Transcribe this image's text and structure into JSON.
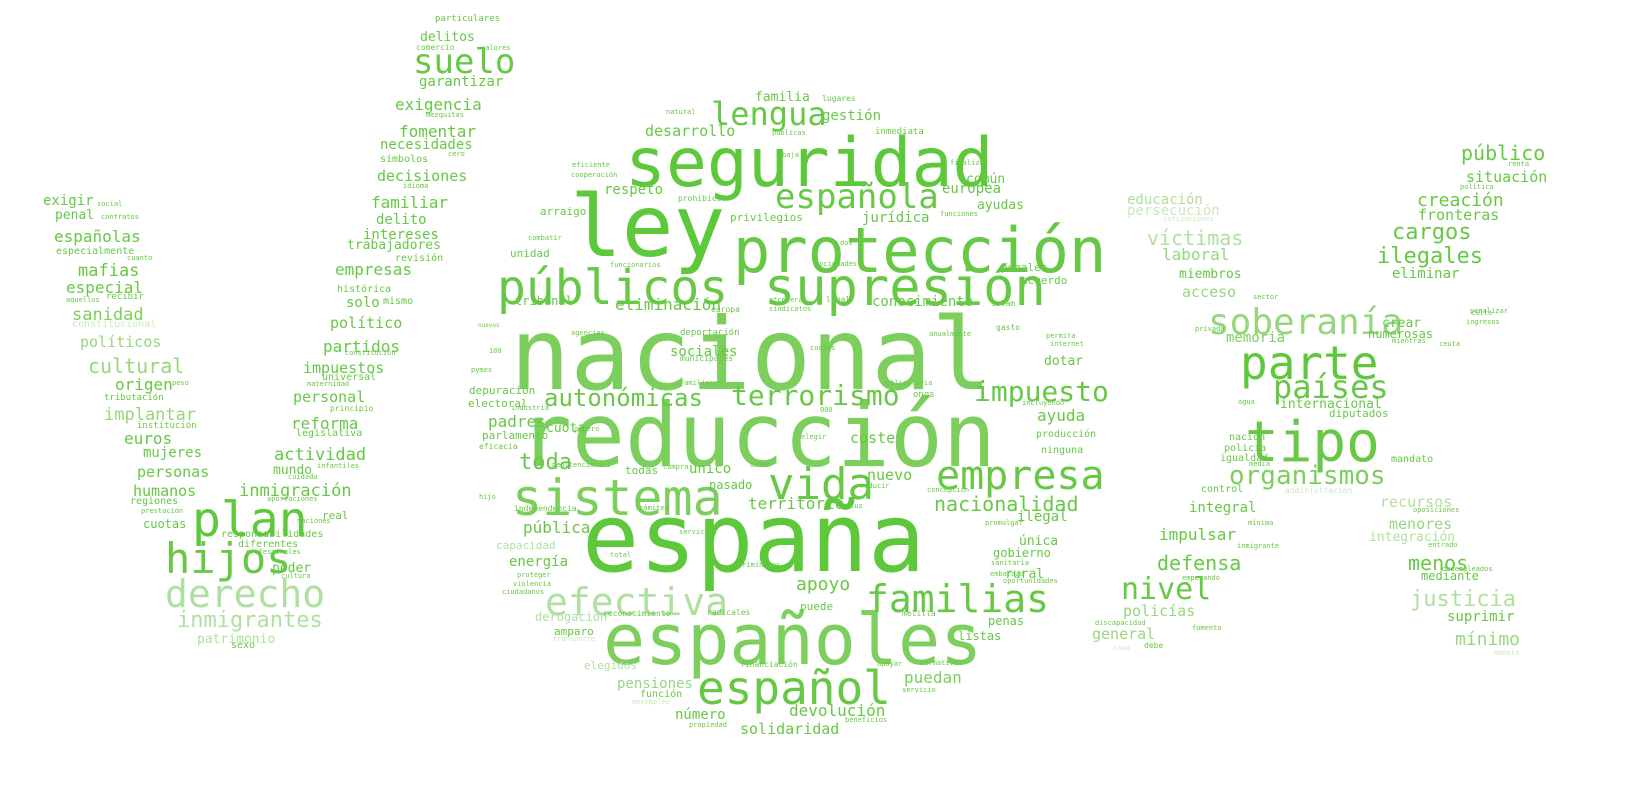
{
  "palette": [
    "#5cc83a",
    "#66c844",
    "#7ccf5c",
    "#96d77e",
    "#b0e0a0",
    "#c8eabb"
  ],
  "words": [
    {
      "text": "nacional",
      "w": 100,
      "c": 2
    },
    {
      "text": "españa",
      "w": 95,
      "c": 0
    },
    {
      "text": "reducción",
      "w": 88,
      "c": 2
    },
    {
      "text": "ley",
      "w": 86,
      "c": 0
    },
    {
      "text": "españoles",
      "w": 70,
      "c": 2
    },
    {
      "text": "seguridad",
      "w": 68,
      "c": 0
    },
    {
      "text": "protección",
      "w": 62,
      "c": 1
    },
    {
      "text": "tipo",
      "w": 56,
      "c": 1
    },
    {
      "text": "supresión",
      "w": 52,
      "c": 1
    },
    {
      "text": "sistema",
      "w": 50,
      "c": 2
    },
    {
      "text": "plan",
      "w": 48,
      "c": 0
    },
    {
      "text": "público",
      "w": 20,
      "c": 1
    },
    {
      "text": "públicos",
      "w": 48,
      "c": 1
    },
    {
      "text": "parte",
      "w": 46,
      "c": 0
    },
    {
      "text": "español",
      "w": 46,
      "c": 1
    },
    {
      "text": "vida",
      "w": 44,
      "c": 1
    },
    {
      "text": "hijos",
      "w": 42,
      "c": 1
    },
    {
      "text": "empresa",
      "w": 40,
      "c": 1
    },
    {
      "text": "efectiva",
      "w": 38,
      "c": 4
    },
    {
      "text": "familias",
      "w": 38,
      "c": 1
    },
    {
      "text": "derecho",
      "w": 38,
      "c": 4
    },
    {
      "text": "soberanía",
      "w": 36,
      "c": 3
    },
    {
      "text": "española",
      "w": 34,
      "c": 1
    },
    {
      "text": "suelo",
      "w": 34,
      "c": 1
    },
    {
      "text": "lengua",
      "w": 32,
      "c": 1
    },
    {
      "text": "países",
      "w": 32,
      "c": 1
    },
    {
      "text": "nivel",
      "w": 30,
      "c": 1
    },
    {
      "text": "terrorismo",
      "w": 28,
      "c": 1
    },
    {
      "text": "impuesto",
      "w": 28,
      "c": 1
    },
    {
      "text": "organismos",
      "w": 26,
      "c": 2
    },
    {
      "text": "autonómicas",
      "w": 24,
      "c": 1
    },
    {
      "text": "toda",
      "w": 22,
      "c": 1
    },
    {
      "text": "ilegales",
      "w": 22,
      "c": 1
    },
    {
      "text": "cargos",
      "w": 22,
      "c": 1
    },
    {
      "text": "inmigrantes",
      "w": 22,
      "c": 4
    },
    {
      "text": "nacionalidad",
      "w": 20,
      "c": 1
    },
    {
      "text": "defensa",
      "w": 20,
      "c": 1
    },
    {
      "text": "justicia",
      "w": 22,
      "c": 4
    },
    {
      "text": "víctimas",
      "w": 20,
      "c": 4
    },
    {
      "text": "menos",
      "w": 20,
      "c": 1
    },
    {
      "text": "cultural",
      "w": 20,
      "c": 3
    },
    {
      "text": "apoyo",
      "w": 18,
      "c": 1
    },
    {
      "text": "puedan",
      "w": 16,
      "c": 2
    },
    {
      "text": "devolución",
      "w": 16,
      "c": 1
    },
    {
      "text": "mínimo",
      "w": 18,
      "c": 3
    },
    {
      "text": "creación",
      "w": 18,
      "c": 1
    },
    {
      "text": "situación",
      "w": 15,
      "c": 1
    },
    {
      "text": "fronteras",
      "w": 15,
      "c": 1
    },
    {
      "text": "mafias",
      "w": 17,
      "c": 1
    },
    {
      "text": "españolas",
      "w": 16,
      "c": 1
    },
    {
      "text": "exigir",
      "w": 14,
      "c": 1
    },
    {
      "text": "penal",
      "w": 13,
      "c": 1
    },
    {
      "text": "especial",
      "w": 16,
      "c": 1
    },
    {
      "text": "sanidad",
      "w": 17,
      "c": 2
    },
    {
      "text": "políticos",
      "w": 15,
      "c": 3
    },
    {
      "text": "origen",
      "w": 16,
      "c": 1
    },
    {
      "text": "implantar",
      "w": 17,
      "c": 3
    },
    {
      "text": "euros",
      "w": 16,
      "c": 1
    },
    {
      "text": "mujeres",
      "w": 14,
      "c": 1
    },
    {
      "text": "personas",
      "w": 15,
      "c": 1
    },
    {
      "text": "humanos",
      "w": 15,
      "c": 1
    },
    {
      "text": "cuotas",
      "w": 12,
      "c": 1
    },
    {
      "text": "patrimonio",
      "w": 13,
      "c": 4
    },
    {
      "text": "inmigración",
      "w": 17,
      "c": 1
    },
    {
      "text": "actividad",
      "w": 17,
      "c": 1
    },
    {
      "text": "mundo",
      "w": 13,
      "c": 1
    },
    {
      "text": "poder",
      "w": 13,
      "c": 1
    },
    {
      "text": "reforma",
      "w": 16,
      "c": 1
    },
    {
      "text": "personal",
      "w": 15,
      "c": 1
    },
    {
      "text": "impuestos",
      "w": 15,
      "c": 1
    },
    {
      "text": "partidos",
      "w": 16,
      "c": 1
    },
    {
      "text": "político",
      "w": 15,
      "c": 1
    },
    {
      "text": "solo",
      "w": 14,
      "c": 1
    },
    {
      "text": "empresas",
      "w": 16,
      "c": 1
    },
    {
      "text": "delito",
      "w": 14,
      "c": 1
    },
    {
      "text": "intereses",
      "w": 14,
      "c": 1
    },
    {
      "text": "trabajadores",
      "w": 13,
      "c": 1
    },
    {
      "text": "familiar",
      "w": 16,
      "c": 1
    },
    {
      "text": "decisiones",
      "w": 15,
      "c": 1
    },
    {
      "text": "necesidades",
      "w": 14,
      "c": 1
    },
    {
      "text": "fomentar",
      "w": 16,
      "c": 1
    },
    {
      "text": "exigencia",
      "w": 16,
      "c": 1
    },
    {
      "text": "garantizar",
      "w": 14,
      "c": 1
    },
    {
      "text": "delitos",
      "w": 13,
      "c": 1
    },
    {
      "text": "desarrollo",
      "w": 15,
      "c": 1
    },
    {
      "text": "respeto",
      "w": 14,
      "c": 1
    },
    {
      "text": "familia",
      "w": 13,
      "c": 1
    },
    {
      "text": "gestión",
      "w": 14,
      "c": 1
    },
    {
      "text": "común",
      "w": 13,
      "c": 1
    },
    {
      "text": "europea",
      "w": 14,
      "c": 1
    },
    {
      "text": "ayudas",
      "w": 13,
      "c": 1
    },
    {
      "text": "jurídica",
      "w": 14,
      "c": 1
    },
    {
      "text": "conocimiento",
      "w": 14,
      "c": 1
    },
    {
      "text": "eliminación",
      "w": 16,
      "c": 1
    },
    {
      "text": "ayuda",
      "w": 16,
      "c": 1
    },
    {
      "text": "coste",
      "w": 15,
      "c": 1
    },
    {
      "text": "nuevo",
      "w": 15,
      "c": 1
    },
    {
      "text": "padres",
      "w": 16,
      "c": 1
    },
    {
      "text": "territorio",
      "w": 16,
      "c": 1
    },
    {
      "text": "pública",
      "w": 16,
      "c": 1
    },
    {
      "text": "energía",
      "w": 14,
      "c": 1
    },
    {
      "text": "cuota",
      "w": 13,
      "c": 1
    },
    {
      "text": "sociales",
      "w": 14,
      "c": 1
    },
    {
      "text": "único",
      "w": 14,
      "c": 1
    },
    {
      "text": "ilegal",
      "w": 14,
      "c": 1
    },
    {
      "text": "número",
      "w": 14,
      "c": 1
    },
    {
      "text": "solidaridad",
      "w": 15,
      "c": 1
    },
    {
      "text": "pensiones",
      "w": 14,
      "c": 3
    },
    {
      "text": "educación",
      "w": 14,
      "c": 4
    },
    {
      "text": "persecución",
      "w": 14,
      "c": 5
    },
    {
      "text": "laboral",
      "w": 16,
      "c": 3
    },
    {
      "text": "acceso",
      "w": 15,
      "c": 3
    },
    {
      "text": "memoria",
      "w": 14,
      "c": 2
    },
    {
      "text": "eliminar",
      "w": 14,
      "c": 1
    },
    {
      "text": "crear",
      "w": 13,
      "c": 1
    },
    {
      "text": "integral",
      "w": 14,
      "c": 1
    },
    {
      "text": "impulsar",
      "w": 16,
      "c": 1
    },
    {
      "text": "recursos",
      "w": 15,
      "c": 4
    },
    {
      "text": "menores",
      "w": 15,
      "c": 3
    },
    {
      "text": "integración",
      "w": 13,
      "c": 4
    },
    {
      "text": "policías",
      "w": 15,
      "c": 3
    },
    {
      "text": "general",
      "w": 15,
      "c": 3
    },
    {
      "text": "internacional",
      "w": 13,
      "c": 1
    },
    {
      "text": "diputados",
      "w": 11,
      "c": 1
    },
    {
      "text": "numerosas",
      "w": 12,
      "c": 1
    },
    {
      "text": "suprimir",
      "w": 14,
      "c": 1
    },
    {
      "text": "mediante",
      "w": 12,
      "c": 1
    },
    {
      "text": "rural",
      "w": 13,
      "c": 1
    },
    {
      "text": "gobierno",
      "w": 12,
      "c": 1
    },
    {
      "text": "única",
      "w": 13,
      "c": 1
    },
    {
      "text": "dotar",
      "w": 13,
      "c": 1
    },
    {
      "text": "listas",
      "w": 12,
      "c": 1
    },
    {
      "text": "penas",
      "w": 12,
      "c": 1
    },
    {
      "text": "puede",
      "w": 11,
      "c": 1
    },
    {
      "text": "amparo",
      "w": 11,
      "c": 1
    },
    {
      "text": "elegidos",
      "w": 11,
      "c": 4
    },
    {
      "text": "capacidad",
      "w": 11,
      "c": 4
    },
    {
      "text": "derogación",
      "w": 12,
      "c": 4
    },
    {
      "text": "pasado",
      "w": 12,
      "c": 1
    },
    {
      "text": "todas",
      "w": 11,
      "c": 1
    },
    {
      "text": "tribunal",
      "w": 12,
      "c": 1
    },
    {
      "text": "arraigo",
      "w": 11,
      "c": 1
    },
    {
      "text": "unidad",
      "w": 11,
      "c": 1
    },
    {
      "text": "depuración",
      "w": 11,
      "c": 1
    },
    {
      "text": "electoral",
      "w": 11,
      "c": 1
    },
    {
      "text": "parlamento",
      "w": 11,
      "c": 1
    },
    {
      "text": "privilegios",
      "w": 11,
      "c": 1
    },
    {
      "text": "acuerdo",
      "w": 11,
      "c": 1
    },
    {
      "text": "penales",
      "w": 11,
      "c": 1
    },
    {
      "text": "producción",
      "w": 10,
      "c": 1
    },
    {
      "text": "ninguna",
      "w": 10,
      "c": 1
    },
    {
      "text": "miembros",
      "w": 13,
      "c": 1
    },
    {
      "text": "real",
      "w": 11,
      "c": 1
    },
    {
      "text": "legislativa",
      "w": 10,
      "c": 1
    },
    {
      "text": "histórica",
      "w": 10,
      "c": 1
    },
    {
      "text": "universal",
      "w": 10,
      "c": 1
    },
    {
      "text": "mismo",
      "w": 10,
      "c": 1
    },
    {
      "text": "símbolos",
      "w": 10,
      "c": 1
    },
    {
      "text": "revisión",
      "w": 10,
      "c": 1
    },
    {
      "text": "institución",
      "w": 9,
      "c": 1
    },
    {
      "text": "responsabilidades",
      "w": 10,
      "c": 1
    },
    {
      "text": "diferentes",
      "w": 10,
      "c": 1
    },
    {
      "text": "regiones",
      "w": 10,
      "c": 1
    },
    {
      "text": "tributación",
      "w": 9,
      "c": 1
    },
    {
      "text": "especialmente",
      "w": 10,
      "c": 1
    },
    {
      "text": "constitucional",
      "w": 10,
      "c": 5
    },
    {
      "text": "recibir",
      "w": 9,
      "c": 1
    },
    {
      "text": "mandato",
      "w": 10,
      "c": 1
    },
    {
      "text": "nación",
      "w": 10,
      "c": 1
    },
    {
      "text": "policía",
      "w": 10,
      "c": 1
    },
    {
      "text": "igualdad",
      "w": 10,
      "c": 1
    },
    {
      "text": "control",
      "w": 10,
      "c": 1
    },
    {
      "text": "sexo",
      "w": 10,
      "c": 1
    },
    {
      "text": "función",
      "w": 10,
      "c": 1
    },
    {
      "text": "particulares",
      "w": 9,
      "c": 1
    },
    {
      "text": "comercio",
      "w": 8,
      "c": 1
    },
    {
      "text": "valores",
      "w": 7,
      "c": 1
    },
    {
      "text": "mezquitas",
      "w": 7,
      "c": 1
    },
    {
      "text": "idioma",
      "w": 7,
      "c": 1
    },
    {
      "text": "cero",
      "w": 7,
      "c": 1
    },
    {
      "text": "social",
      "w": 7,
      "c": 1
    },
    {
      "text": "contratos",
      "w": 7,
      "c": 1
    },
    {
      "text": "cuanto",
      "w": 7,
      "c": 1
    },
    {
      "text": "aquellos",
      "w": 7,
      "c": 1
    },
    {
      "text": "peso",
      "w": 7,
      "c": 1
    },
    {
      "text": "constitución",
      "w": 7,
      "c": 1
    },
    {
      "text": "maternidad",
      "w": 7,
      "c": 1
    },
    {
      "text": "principio",
      "w": 8,
      "c": 1
    },
    {
      "text": "infantiles",
      "w": 7,
      "c": 1
    },
    {
      "text": "cuidado",
      "w": 7,
      "c": 1
    },
    {
      "text": "aportaciones",
      "w": 7,
      "c": 1
    },
    {
      "text": "prestación",
      "w": 7,
      "c": 1
    },
    {
      "text": "naciones",
      "w": 7,
      "c": 1
    },
    {
      "text": "profesionales",
      "w": 7,
      "c": 1
    },
    {
      "text": "cultura",
      "w": 7,
      "c": 1
    },
    {
      "text": "lugares",
      "w": 8,
      "c": 1
    },
    {
      "text": "natural",
      "w": 7,
      "c": 1
    },
    {
      "text": "públicas",
      "w": 7,
      "c": 1
    },
    {
      "text": "baja",
      "w": 7,
      "c": 1
    },
    {
      "text": "inmediata",
      "w": 9,
      "c": 1
    },
    {
      "text": "eficiente",
      "w": 7,
      "c": 1
    },
    {
      "text": "cooperación",
      "w": 7,
      "c": 1
    },
    {
      "text": "finalizar",
      "w": 7,
      "c": 1
    },
    {
      "text": "prohibición",
      "w": 8,
      "c": 1
    },
    {
      "text": "combatir",
      "w": 7,
      "c": 1
    },
    {
      "text": "funciones",
      "w": 7,
      "c": 1
    },
    {
      "text": "dos",
      "w": 7,
      "c": 1
    },
    {
      "text": "funcionarios",
      "w": 7,
      "c": 1
    },
    {
      "text": "sociedades",
      "w": 7,
      "c": 1
    },
    {
      "text": "europa",
      "w": 8,
      "c": 1
    },
    {
      "text": "etcétera",
      "w": 7,
      "c": 1
    },
    {
      "text": "sindicatos",
      "w": 7,
      "c": 1
    },
    {
      "text": "legal",
      "w": 8,
      "c": 1
    },
    {
      "text": "islam",
      "w": 8,
      "c": 1
    },
    {
      "text": "gasto",
      "w": 8,
      "c": 1
    },
    {
      "text": "permita",
      "w": 7,
      "c": 1
    },
    {
      "text": "internet",
      "w": 7,
      "c": 1
    },
    {
      "text": "nuevos",
      "w": 6,
      "c": 1
    },
    {
      "text": "agencias",
      "w": 7,
      "c": 1
    },
    {
      "text": "100",
      "w": 7,
      "c": 1
    },
    {
      "text": "deportación",
      "w": 9,
      "c": 1
    },
    {
      "text": "municipales",
      "w": 8,
      "c": 1
    },
    {
      "text": "costes",
      "w": 7,
      "c": 1
    },
    {
      "text": "anualmente",
      "w": 7,
      "c": 1
    },
    {
      "text": "familiares",
      "w": 7,
      "c": 1
    },
    {
      "text": "obligatoria",
      "w": 7,
      "c": 1
    },
    {
      "text": "ongs",
      "w": 9,
      "c": 1
    },
    {
      "text": "pymes",
      "w": 7,
      "c": 1
    },
    {
      "text": "industria",
      "w": 7,
      "c": 1
    },
    {
      "text": "000",
      "w": 7,
      "c": 1
    },
    {
      "text": "incluyendo",
      "w": 7,
      "c": 1
    },
    {
      "text": "género",
      "w": 7,
      "c": 1
    },
    {
      "text": "elegir",
      "w": 7,
      "c": 1
    },
    {
      "text": "compra",
      "w": 7,
      "c": 1
    },
    {
      "text": "deben",
      "w": 7,
      "c": 1
    },
    {
      "text": "penitenciarios",
      "w": 7,
      "c": 1
    },
    {
      "text": "eficacia",
      "w": 8,
      "c": 1
    },
    {
      "text": "reducir",
      "w": 7,
      "c": 1
    },
    {
      "text": "concepción",
      "w": 7,
      "c": 1
    },
    {
      "text": "hijo",
      "w": 7,
      "c": 1
    },
    {
      "text": "independencia",
      "w": 8,
      "c": 1
    },
    {
      "text": "trámites",
      "w": 7,
      "c": 1
    },
    {
      "text": "luz",
      "w": 7,
      "c": 1
    },
    {
      "text": "promulgar",
      "w": 7,
      "c": 1
    },
    {
      "text": "servicios",
      "w": 7,
      "c": 1
    },
    {
      "text": "total",
      "w": 7,
      "c": 1
    },
    {
      "text": "proteger",
      "w": 7,
      "c": 1
    },
    {
      "text": "criminales",
      "w": 7,
      "c": 1
    },
    {
      "text": "violencia",
      "w": 7,
      "c": 1
    },
    {
      "text": "ciudadanos",
      "w": 7,
      "c": 1
    },
    {
      "text": "sanitaria",
      "w": 7,
      "c": 1
    },
    {
      "text": "embarazo",
      "w": 7,
      "c": 1
    },
    {
      "text": "oportunidades",
      "w": 7,
      "c": 1
    },
    {
      "text": "reconocimiento",
      "w": 8,
      "c": 1
    },
    {
      "text": "radicales",
      "w": 8,
      "c": 1
    },
    {
      "text": "melilla",
      "w": 8,
      "c": 1
    },
    {
      "text": "transporte",
      "w": 7,
      "c": 5
    },
    {
      "text": "financiación",
      "w": 8,
      "c": 1
    },
    {
      "text": "apoyar",
      "w": 7,
      "c": 1
    },
    {
      "text": "normativas",
      "w": 7,
      "c": 1
    },
    {
      "text": "servicio",
      "w": 7,
      "c": 1
    },
    {
      "text": "desempleo",
      "w": 7,
      "c": 5
    },
    {
      "text": "propiedad",
      "w": 7,
      "c": 1
    },
    {
      "text": "beneficios",
      "w": 7,
      "c": 1
    },
    {
      "text": "renta",
      "w": 7,
      "c": 1
    },
    {
      "text": "política",
      "w": 7,
      "c": 1
    },
    {
      "text": "cotizaciones",
      "w": 7,
      "c": 5
    },
    {
      "text": "culto",
      "w": 7,
      "c": 1
    },
    {
      "text": "privada",
      "w": 7,
      "c": 1
    },
    {
      "text": "sector",
      "w": 7,
      "c": 1
    },
    {
      "text": "penalizar",
      "w": 7,
      "c": 1
    },
    {
      "text": "ingresos",
      "w": 7,
      "c": 1
    },
    {
      "text": "mientras",
      "w": 7,
      "c": 1
    },
    {
      "text": "ceuta",
      "w": 7,
      "c": 1
    },
    {
      "text": "agua",
      "w": 7,
      "c": 1
    },
    {
      "text": "administración",
      "w": 8,
      "c": 5
    },
    {
      "text": "oposiciones",
      "w": 7,
      "c": 1
    },
    {
      "text": "mínima",
      "w": 7,
      "c": 1
    },
    {
      "text": "inmigrante",
      "w": 7,
      "c": 1
    },
    {
      "text": "entrado",
      "w": 7,
      "c": 1
    },
    {
      "text": "desempleados",
      "w": 7,
      "c": 1
    },
    {
      "text": "empezando",
      "w": 7,
      "c": 1
    },
    {
      "text": "discapacidad",
      "w": 7,
      "c": 1
    },
    {
      "text": "fomento",
      "w": 7,
      "c": 1
    },
    {
      "text": "debe",
      "w": 8,
      "c": 1
    },
    {
      "text": "caso",
      "w": 7,
      "c": 5
    },
    {
      "text": "modelo",
      "w": 7,
      "c": 5
    },
    {
      "text": "media",
      "w": 7,
      "c": 1
    }
  ]
}
